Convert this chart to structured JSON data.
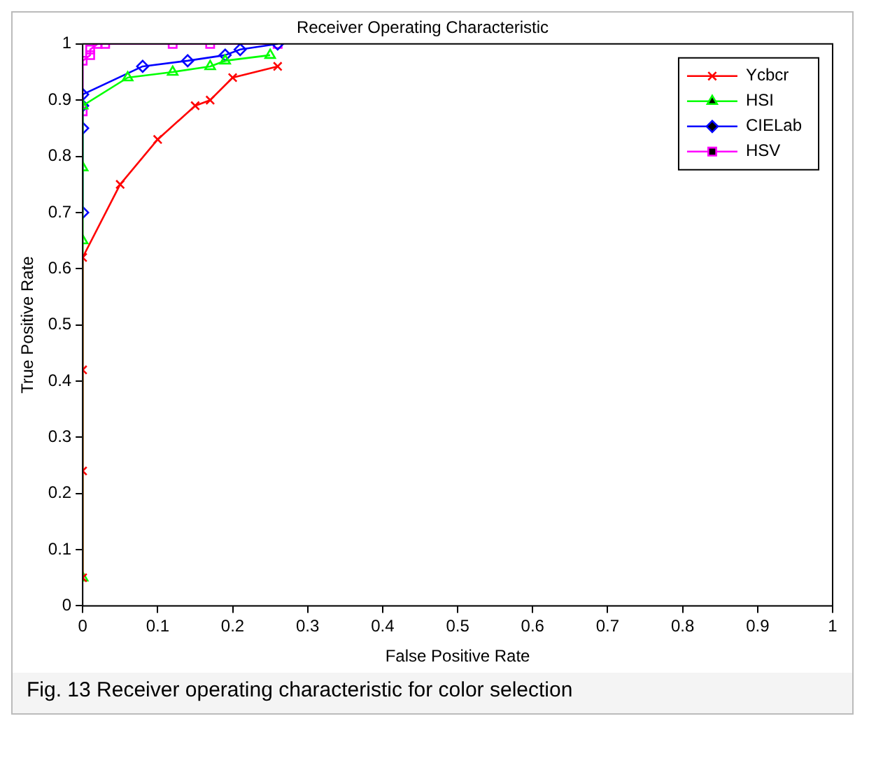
{
  "chart_data": {
    "type": "line",
    "title": "Receiver Operating Characteristic",
    "xlabel": "False Positive Rate",
    "ylabel": "True Positive Rate",
    "annotations": [
      "Fig. 13 Receiver operating characteristic for color selection"
    ],
    "xlim": [
      0,
      1
    ],
    "ylim": [
      0,
      1
    ],
    "xticks": [
      0,
      0.1,
      0.2,
      0.3,
      0.4,
      0.5,
      0.6,
      0.7,
      0.8,
      0.9,
      1
    ],
    "yticks": [
      0,
      0.1,
      0.2,
      0.3,
      0.4,
      0.5,
      0.6,
      0.7,
      0.8,
      0.9,
      1
    ],
    "grid": false,
    "legend": "top right",
    "line_style": "solid",
    "series": [
      {
        "name": "Ycbcr",
        "color": "#ff0000",
        "marker": "cross",
        "x": [
          0,
          0,
          0,
          0,
          0.05,
          0.1,
          0.15,
          0.17,
          0.2,
          0.26
        ],
        "values": [
          0.05,
          0.24,
          0.42,
          0.62,
          0.75,
          0.83,
          0.89,
          0.9,
          0.94,
          0.96
        ]
      },
      {
        "name": "HSI",
        "color": "#00ff00",
        "marker": "triangle",
        "x": [
          0,
          0,
          0,
          0,
          0.06,
          0.12,
          0.17,
          0.19,
          0.25
        ],
        "values": [
          0.05,
          0.65,
          0.78,
          0.89,
          0.94,
          0.95,
          0.96,
          0.97,
          0.98
        ]
      },
      {
        "name": "CIELab",
        "color": "#0000ff",
        "marker": "diamond",
        "x": [
          0,
          0,
          0,
          0,
          0.08,
          0.14,
          0.19,
          0.21,
          0.26
        ],
        "values": [
          0.7,
          0.85,
          0.89,
          0.91,
          0.96,
          0.97,
          0.98,
          0.99,
          1
        ]
      },
      {
        "name": "HSV",
        "color": "#ff00ff",
        "marker": "square",
        "x": [
          0,
          0,
          0.01,
          0.01,
          0.02,
          0.03,
          0.12,
          0.17,
          0.26
        ],
        "values": [
          0.88,
          0.97,
          0.98,
          0.99,
          1,
          1,
          1,
          1,
          1
        ]
      }
    ]
  }
}
